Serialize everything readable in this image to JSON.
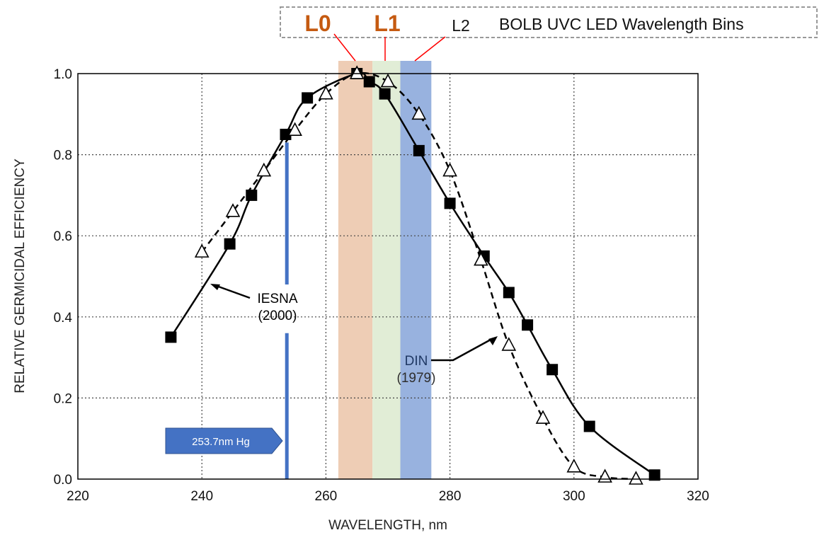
{
  "chart_data": {
    "type": "line",
    "xlabel": "WAVELENGTH, nm",
    "ylabel": "RELATIVE GERMICIDAL EFFICIENCY",
    "xlim": [
      220,
      320
    ],
    "ylim": [
      0.0,
      1.0
    ],
    "x_ticks": [
      "220",
      "240",
      "260",
      "280",
      "300",
      "320"
    ],
    "y_ticks": [
      "0.0",
      "0.2",
      "0.4",
      "0.6",
      "0.8",
      "1.0"
    ],
    "grid": true,
    "series": [
      {
        "name": "IESNA (2000)",
        "marker": "filled-square",
        "line_style": "solid",
        "color": "#000000",
        "x": [
          235,
          244.5,
          248,
          253.5,
          257,
          265,
          267,
          269.5,
          275,
          280,
          285.5,
          289.5,
          292.5,
          296.5,
          302.5,
          313
        ],
        "y": [
          0.35,
          0.58,
          0.7,
          0.85,
          0.94,
          1.0,
          0.98,
          0.95,
          0.81,
          0.68,
          0.55,
          0.46,
          0.38,
          0.27,
          0.13,
          0.01
        ]
      },
      {
        "name": "DIN (1979)",
        "marker": "open-triangle",
        "line_style": "dashed",
        "color": "#000000",
        "x": [
          240,
          245,
          250,
          255,
          260,
          265,
          270,
          275,
          280,
          285,
          289.5,
          295,
          300,
          305,
          310
        ],
        "y": [
          0.56,
          0.66,
          0.76,
          0.86,
          0.95,
          1.0,
          0.98,
          0.9,
          0.76,
          0.54,
          0.33,
          0.15,
          0.03,
          0.005,
          0.0
        ]
      }
    ],
    "annotations": {
      "iesna_line1": "IESNA",
      "iesna_line2": "(2000)",
      "din_line1": "DIN",
      "din_line2": "(1979)",
      "hg_label": "253.7nm Hg",
      "hg_wavelength": 253.7
    },
    "bins": {
      "title": "BOLB UVC LED Wavelength Bins",
      "items": [
        {
          "label": "L0",
          "x_start": 262,
          "x_end": 267.5,
          "color": "#eecdb5"
        },
        {
          "label": "L1",
          "x_start": 267.5,
          "x_end": 272,
          "color": "#e1edd6"
        },
        {
          "label": "L2",
          "x_start": 272,
          "x_end": 277,
          "color": "#98b2df"
        }
      ]
    },
    "colors": {
      "hg_line": "#4472c4",
      "hg_arrow": "#4472c4",
      "din_label": "#1f3864",
      "connector": "#ff0000",
      "legend_border": "#999999"
    }
  }
}
